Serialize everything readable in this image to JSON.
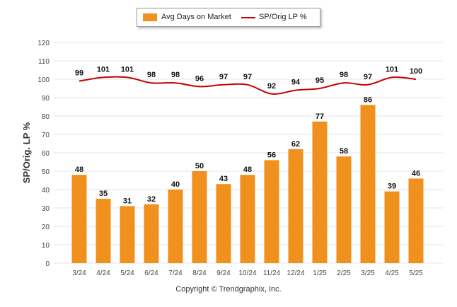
{
  "chart_data": {
    "type": "bar",
    "categories": [
      "3/24",
      "4/24",
      "5/24",
      "6/24",
      "7/24",
      "8/24",
      "9/24",
      "10/24",
      "11/24",
      "12/24",
      "1/25",
      "2/25",
      "3/25",
      "4/25",
      "5/25"
    ],
    "series": [
      {
        "name": "Avg Days on Market",
        "type": "bar",
        "color": "#f0901d",
        "values": [
          48,
          35,
          31,
          32,
          40,
          50,
          43,
          48,
          56,
          62,
          77,
          58,
          86,
          39,
          46
        ]
      },
      {
        "name": "SP/Orig LP %",
        "type": "line",
        "color": "#c40000",
        "values": [
          99,
          101,
          101,
          98,
          98,
          96,
          97,
          97,
          92,
          94,
          95,
          98,
          97,
          101,
          100
        ]
      }
    ],
    "ylabel": "SP/Orig. LP %",
    "ylim": [
      0,
      120
    ],
    "yticks": [
      0,
      10,
      20,
      30,
      40,
      50,
      60,
      70,
      80,
      90,
      100,
      110,
      120
    ],
    "grid": true,
    "legend_position": "top-center"
  },
  "footer": {
    "copyright": "Copyright © Trendgraphix, Inc."
  }
}
